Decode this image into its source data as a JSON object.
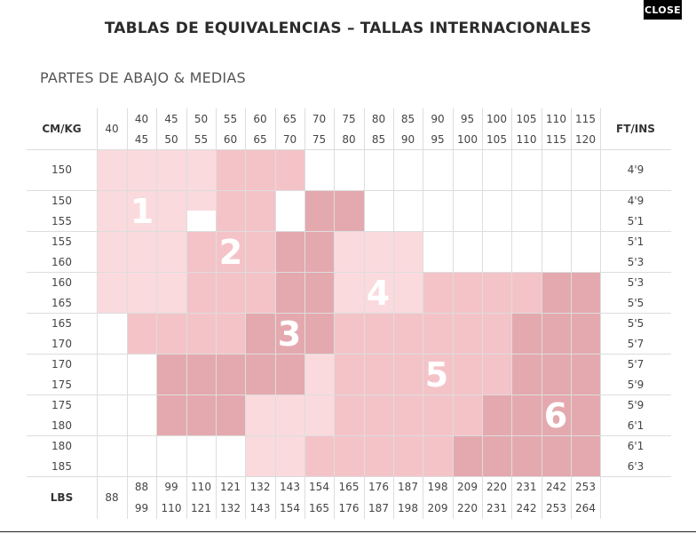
{
  "header": {
    "close_label": "CLOSE",
    "title": "TABLAS DE EQUIVALENCIAS – TALLAS INTERNACIONALES"
  },
  "section": {
    "title": "PARTES DE ABAJO & MEDIAS"
  },
  "table": {
    "row_header_label": "CM/KG",
    "right_header_label": "FT/INS",
    "bottom_header_label": "LBS",
    "kg_top": [
      "40",
      "40",
      "45",
      "50",
      "55",
      "60",
      "65",
      "70",
      "75",
      "80",
      "85",
      "90",
      "95",
      "100",
      "105",
      "110",
      "115"
    ],
    "kg_bottom": [
      "",
      "45",
      "50",
      "55",
      "60",
      "65",
      "70",
      "75",
      "80",
      "85",
      "90",
      "95",
      "100",
      "105",
      "110",
      "115",
      "120"
    ],
    "lbs_top": [
      "88",
      "88",
      "99",
      "110",
      "121",
      "132",
      "143",
      "154",
      "165",
      "176",
      "187",
      "198",
      "209",
      "220",
      "231",
      "242",
      "253"
    ],
    "lbs_bottom": [
      "",
      "99",
      "110",
      "121",
      "132",
      "143",
      "154",
      "165",
      "176",
      "187",
      "198",
      "209",
      "220",
      "231",
      "242",
      "253",
      "264"
    ],
    "cm_rows": [
      [
        "150"
      ],
      [
        "150",
        "155"
      ],
      [
        "155",
        "160"
      ],
      [
        "160",
        "165"
      ],
      [
        "165",
        "170"
      ],
      [
        "170",
        "175"
      ],
      [
        "175",
        "180"
      ],
      [
        "180",
        "185"
      ]
    ],
    "ft_rows": [
      [
        "4'9"
      ],
      [
        "4'9",
        "5'1"
      ],
      [
        "5'1",
        "5'3"
      ],
      [
        "5'3",
        "5'5"
      ],
      [
        "5'5",
        "5'7"
      ],
      [
        "5'7",
        "5'9"
      ],
      [
        "5'9",
        "6'1"
      ],
      [
        "6'1",
        "6'3"
      ]
    ]
  },
  "sizes": [
    {
      "label": "1",
      "color": "#fadadd"
    },
    {
      "label": "2",
      "color": "#f4c3c8"
    },
    {
      "label": "3",
      "color": "#e4a9ae"
    },
    {
      "label": "4",
      "color": "#fadadd"
    },
    {
      "label": "5",
      "color": "#f4c3c8"
    },
    {
      "label": "6",
      "color": "#e4a9ae"
    }
  ]
}
